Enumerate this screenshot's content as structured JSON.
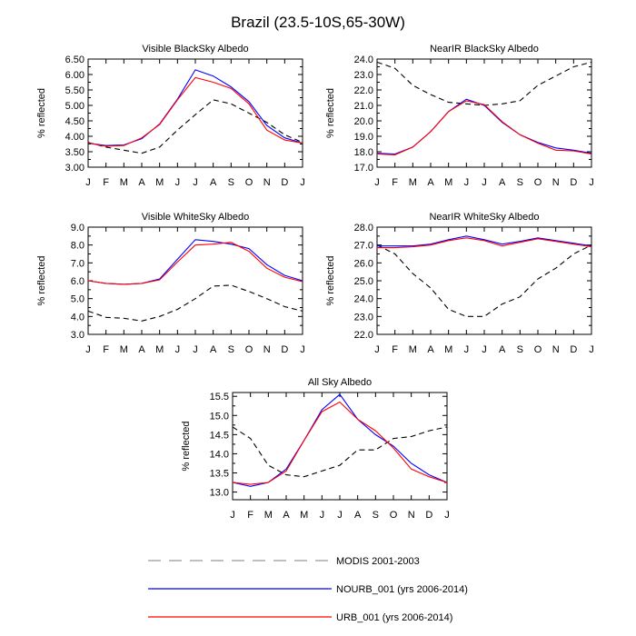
{
  "figure_title": "Brazil (23.5-10S,65-30W)",
  "colors": {
    "MODIS": "#000000",
    "NOURB": "#0000ff",
    "URB": "#ff0000",
    "legend_modis": "#999999"
  },
  "legend": [
    {
      "key": "MODIS",
      "label": "MODIS 2001-2003",
      "style": "dashed"
    },
    {
      "key": "NOURB",
      "label": "NOURB_001 (yrs 2006-2014)",
      "style": "solid"
    },
    {
      "key": "URB",
      "label": "URB_001 (yrs 2006-2014)",
      "style": "solid"
    }
  ],
  "chart_data": [
    {
      "type": "line",
      "title": "Visible BlackSky Albedo",
      "ylabel": "% reflected",
      "categories": [
        "J",
        "F",
        "M",
        "A",
        "M",
        "J",
        "J",
        "A",
        "S",
        "O",
        "N",
        "D",
        "J"
      ],
      "ylim": [
        3.0,
        6.5
      ],
      "yticks": [
        "3.00",
        "3.50",
        "4.00",
        "4.50",
        "5.00",
        "5.50",
        "6.00",
        "6.50"
      ],
      "series": [
        {
          "name": "MODIS",
          "values": [
            3.8,
            3.65,
            3.55,
            3.45,
            3.65,
            4.2,
            4.7,
            5.18,
            5.05,
            4.75,
            4.45,
            4.05,
            3.8
          ]
        },
        {
          "name": "NOURB",
          "values": [
            3.78,
            3.7,
            3.72,
            3.92,
            4.4,
            5.2,
            6.15,
            5.95,
            5.6,
            5.12,
            4.35,
            3.95,
            3.78
          ]
        },
        {
          "name": "URB",
          "values": [
            3.78,
            3.68,
            3.7,
            3.95,
            4.38,
            5.18,
            5.9,
            5.75,
            5.55,
            5.05,
            4.2,
            3.88,
            3.78
          ]
        }
      ]
    },
    {
      "type": "line",
      "title": "NearIR BlackSky Albedo",
      "ylabel": "% reflected",
      "categories": [
        "J",
        "F",
        "M",
        "A",
        "M",
        "J",
        "J",
        "A",
        "S",
        "O",
        "N",
        "D",
        "J"
      ],
      "ylim": [
        17.0,
        24.0
      ],
      "yticks": [
        "17.0",
        "18.0",
        "19.0",
        "20.0",
        "21.0",
        "22.0",
        "23.0",
        "24.0"
      ],
      "series": [
        {
          "name": "MODIS",
          "values": [
            23.8,
            23.4,
            22.3,
            21.7,
            21.2,
            21.1,
            21.0,
            21.1,
            21.3,
            22.3,
            22.9,
            23.5,
            23.8
          ]
        },
        {
          "name": "NOURB",
          "values": [
            17.9,
            17.85,
            18.3,
            19.3,
            20.6,
            21.4,
            21.0,
            19.9,
            19.1,
            18.6,
            18.25,
            18.1,
            17.9
          ]
        },
        {
          "name": "URB",
          "values": [
            17.85,
            17.8,
            18.3,
            19.3,
            20.6,
            21.3,
            21.05,
            19.95,
            19.1,
            18.55,
            18.1,
            18.05,
            17.85
          ]
        }
      ]
    },
    {
      "type": "line",
      "title": "Visible WhiteSky Albedo",
      "ylabel": "% reflected",
      "categories": [
        "J",
        "F",
        "M",
        "A",
        "M",
        "J",
        "J",
        "A",
        "S",
        "O",
        "N",
        "D",
        "J"
      ],
      "ylim": [
        3.0,
        9.0
      ],
      "yticks": [
        "3.0",
        "4.0",
        "5.0",
        "6.0",
        "7.0",
        "8.0",
        "9.0"
      ],
      "series": [
        {
          "name": "MODIS",
          "values": [
            4.3,
            3.95,
            3.9,
            3.75,
            4.0,
            4.4,
            5.0,
            5.7,
            5.75,
            5.4,
            5.0,
            4.55,
            4.3
          ]
        },
        {
          "name": "NOURB",
          "values": [
            6.0,
            5.85,
            5.8,
            5.85,
            6.1,
            7.2,
            8.3,
            8.2,
            8.05,
            7.8,
            6.9,
            6.3,
            6.0
          ]
        },
        {
          "name": "URB",
          "values": [
            6.0,
            5.85,
            5.8,
            5.85,
            6.05,
            7.05,
            8.0,
            8.05,
            8.15,
            7.65,
            6.7,
            6.2,
            5.95
          ]
        }
      ]
    },
    {
      "type": "line",
      "title": "NearIR WhiteSky Albedo",
      "ylabel": "% reflected",
      "categories": [
        "J",
        "F",
        "M",
        "A",
        "M",
        "J",
        "J",
        "A",
        "S",
        "O",
        "N",
        "D",
        "J"
      ],
      "ylim": [
        22.0,
        28.0
      ],
      "yticks": [
        "22.0",
        "23.0",
        "24.0",
        "25.0",
        "26.0",
        "27.0",
        "28.0"
      ],
      "series": [
        {
          "name": "MODIS",
          "values": [
            27.0,
            26.5,
            25.4,
            24.6,
            23.4,
            23.0,
            23.0,
            23.7,
            24.1,
            25.1,
            25.7,
            26.5,
            27.0
          ]
        },
        {
          "name": "NOURB",
          "values": [
            26.95,
            26.95,
            26.95,
            27.05,
            27.3,
            27.5,
            27.3,
            27.05,
            27.2,
            27.4,
            27.25,
            27.1,
            26.95
          ]
        },
        {
          "name": "URB",
          "values": [
            26.85,
            26.85,
            26.9,
            27.0,
            27.25,
            27.4,
            27.25,
            26.95,
            27.15,
            27.35,
            27.2,
            27.05,
            26.9
          ]
        }
      ]
    },
    {
      "type": "line",
      "title": "All Sky Albedo",
      "ylabel": "% reflected",
      "categories": [
        "J",
        "F",
        "M",
        "A",
        "M",
        "J",
        "J",
        "A",
        "S",
        "O",
        "N",
        "D",
        "J"
      ],
      "ylim": [
        12.8,
        15.6
      ],
      "yticks": [
        "13.0",
        "13.5",
        "14.0",
        "14.5",
        "15.0",
        "15.5"
      ],
      "ytick_values": [
        13.0,
        13.5,
        14.0,
        14.5,
        15.0,
        15.5
      ],
      "series": [
        {
          "name": "MODIS",
          "values": [
            14.7,
            14.4,
            13.7,
            13.45,
            13.4,
            13.55,
            13.7,
            14.1,
            14.1,
            14.4,
            14.45,
            14.6,
            14.7
          ]
        },
        {
          "name": "NOURB",
          "values": [
            13.25,
            13.15,
            13.25,
            13.6,
            14.35,
            15.15,
            15.55,
            14.9,
            14.5,
            14.2,
            13.75,
            13.45,
            13.25
          ]
        },
        {
          "name": "URB",
          "values": [
            13.25,
            13.2,
            13.25,
            13.55,
            14.35,
            15.1,
            15.35,
            14.9,
            14.6,
            14.15,
            13.6,
            13.4,
            13.25
          ]
        }
      ]
    }
  ]
}
